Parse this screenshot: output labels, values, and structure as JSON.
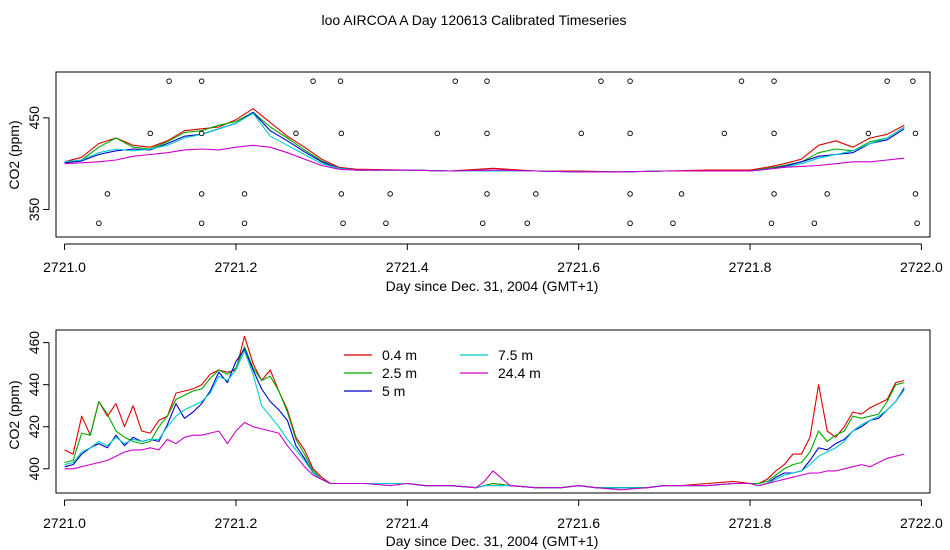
{
  "page_title": "loo AIRCOA A  Day 120613  Calibrated Timeseries",
  "chart_data": [
    {
      "type": "line",
      "panel": "top",
      "title": "",
      "xlabel": "Day since Dec. 31, 2004 (GMT+1)",
      "ylabel": "CO2 (ppm)",
      "xlim": [
        2720.99,
        2722.01
      ],
      "ylim": [
        320,
        500
      ],
      "x_ticks": [
        2721.0,
        2721.2,
        2721.4,
        2721.6,
        2721.8,
        2722.0
      ],
      "x_tick_labels": [
        "2721.0",
        "2721.2",
        "2721.4",
        "2721.6",
        "2721.8",
        "2722.0"
      ],
      "y_ticks": [
        350,
        450
      ],
      "y_tick_labels": [
        "350",
        "450"
      ],
      "x": [
        2721.0,
        2721.02,
        2721.04,
        2721.06,
        2721.08,
        2721.1,
        2721.12,
        2721.14,
        2721.16,
        2721.18,
        2721.2,
        2721.22,
        2721.24,
        2721.26,
        2721.28,
        2721.3,
        2721.32,
        2721.34,
        2721.4,
        2721.45,
        2721.5,
        2721.55,
        2721.6,
        2721.65,
        2721.7,
        2721.75,
        2721.8,
        2721.82,
        2721.84,
        2721.86,
        2721.88,
        2721.9,
        2721.92,
        2721.94,
        2721.96,
        2721.98
      ],
      "series": [
        {
          "name": "0.4 m",
          "color": "#dd0000",
          "values": [
            402,
            407,
            422,
            428,
            420,
            418,
            425,
            436,
            438,
            440,
            448,
            460,
            445,
            430,
            418,
            405,
            396,
            394,
            393,
            392,
            395,
            392,
            392,
            391,
            392,
            393,
            393,
            396,
            400,
            405,
            420,
            425,
            418,
            428,
            432,
            442
          ]
        },
        {
          "name": "2.5 m",
          "color": "#00aa00",
          "values": [
            401,
            404,
            418,
            428,
            418,
            416,
            424,
            434,
            436,
            442,
            446,
            456,
            440,
            428,
            415,
            403,
            395,
            393,
            393,
            392,
            393,
            392,
            391,
            391,
            392,
            392,
            392,
            395,
            398,
            402,
            412,
            416,
            414,
            424,
            428,
            440
          ]
        },
        {
          "name": "5 m",
          "color": "#0000cc",
          "values": [
            401,
            403,
            410,
            414,
            416,
            415,
            422,
            430,
            432,
            438,
            444,
            456,
            436,
            425,
            413,
            402,
            395,
            393,
            393,
            392,
            393,
            392,
            391,
            391,
            392,
            392,
            392,
            394,
            397,
            402,
            408,
            410,
            412,
            422,
            426,
            438
          ]
        },
        {
          "name": "7.5 m",
          "color": "#00cccc",
          "values": [
            402,
            404,
            412,
            416,
            414,
            416,
            420,
            428,
            432,
            438,
            444,
            455,
            430,
            420,
            410,
            400,
            395,
            393,
            393,
            392,
            392,
            392,
            391,
            391,
            392,
            392,
            392,
            394,
            396,
            400,
            406,
            410,
            414,
            422,
            428,
            440
          ]
        },
        {
          "name": "24.4 m",
          "color": "#cc00cc",
          "values": [
            400,
            401,
            402,
            404,
            408,
            410,
            412,
            415,
            416,
            415,
            418,
            420,
            418,
            412,
            405,
            398,
            394,
            393,
            393,
            392,
            393,
            392,
            391,
            391,
            392,
            392,
            392,
            394,
            396,
            397,
            398,
            400,
            402,
            402,
            404,
            406
          ]
        }
      ],
      "markers_x": [
        2721.122,
        2721.16,
        2721.29,
        2721.322,
        2721.456,
        2721.493,
        2721.626,
        2721.66,
        2721.79,
        2721.828,
        2721.96,
        2721.99,
        2721.1,
        2721.16,
        2721.27,
        2721.323,
        2721.435,
        2721.493,
        2721.603,
        2721.66,
        2721.77,
        2721.828,
        2721.938,
        2721.993,
        2721.05,
        2721.16,
        2721.21,
        2721.323,
        2721.38,
        2721.493,
        2721.55,
        2721.66,
        2721.72,
        2721.828,
        2721.89,
        2721.993,
        2721.04,
        2721.16,
        2721.21,
        2721.325,
        2721.375,
        2721.488,
        2721.54,
        2721.66,
        2721.71,
        2721.825,
        2721.875,
        2721.995
      ],
      "markers_y": [
        490,
        490,
        490,
        490,
        490,
        490,
        490,
        490,
        490,
        490,
        490,
        490,
        433,
        433,
        433,
        433,
        433,
        433,
        433,
        433,
        433,
        433,
        433,
        433,
        367,
        367,
        367,
        367,
        367,
        367,
        367,
        367,
        367,
        367,
        367,
        367,
        335,
        335,
        335,
        335,
        335,
        335,
        335,
        335,
        335,
        335,
        335,
        335
      ]
    },
    {
      "type": "line",
      "panel": "bottom",
      "title": "",
      "xlabel": "Day since Dec. 31, 2004 (GMT+1)",
      "ylabel": "CO2 (ppm)",
      "xlim": [
        2720.99,
        2722.01
      ],
      "ylim": [
        388.5,
        466
      ],
      "x_ticks": [
        2721.0,
        2721.2,
        2721.4,
        2721.6,
        2721.8,
        2722.0
      ],
      "x_tick_labels": [
        "2721.0",
        "2721.2",
        "2721.4",
        "2721.6",
        "2721.8",
        "2722.0"
      ],
      "y_ticks": [
        400,
        420,
        440,
        460
      ],
      "y_tick_labels": [
        "400",
        "420",
        "440",
        "460"
      ],
      "x": [
        2721.0,
        2721.01,
        2721.02,
        2721.03,
        2721.04,
        2721.05,
        2721.06,
        2721.07,
        2721.08,
        2721.09,
        2721.1,
        2721.11,
        2721.12,
        2721.13,
        2721.14,
        2721.15,
        2721.16,
        2721.17,
        2721.18,
        2721.19,
        2721.2,
        2721.21,
        2721.22,
        2721.23,
        2721.24,
        2721.25,
        2721.26,
        2721.27,
        2721.28,
        2721.29,
        2721.3,
        2721.31,
        2721.32,
        2721.33,
        2721.35,
        2721.38,
        2721.4,
        2721.42,
        2721.45,
        2721.48,
        2721.49,
        2721.5,
        2721.52,
        2721.55,
        2721.58,
        2721.6,
        2721.62,
        2721.65,
        2721.68,
        2721.7,
        2721.72,
        2721.75,
        2721.78,
        2721.8,
        2721.81,
        2721.82,
        2721.83,
        2721.84,
        2721.85,
        2721.86,
        2721.87,
        2721.88,
        2721.89,
        2721.9,
        2721.91,
        2721.92,
        2721.93,
        2721.94,
        2721.95,
        2721.96,
        2721.97,
        2721.98
      ],
      "series": [
        {
          "name": "0.4 m",
          "color": "#dd0000",
          "values": [
            409,
            407,
            425,
            416,
            432,
            425,
            431,
            420,
            430,
            418,
            417,
            423,
            425,
            436,
            437,
            438,
            440,
            445,
            447,
            446,
            447,
            463,
            450,
            442,
            447,
            437,
            428,
            415,
            409,
            400,
            396,
            393,
            393,
            393,
            393,
            393,
            393,
            392,
            392,
            391,
            392,
            393,
            392,
            391,
            391,
            392,
            391,
            391,
            391,
            392,
            392,
            393,
            394,
            393,
            393,
            395,
            399,
            402,
            407,
            407,
            415,
            440,
            418,
            415,
            420,
            427,
            426,
            429,
            431,
            433,
            441,
            442
          ]
        },
        {
          "name": "2.5 m",
          "color": "#00aa00",
          "values": [
            403,
            404,
            417,
            416,
            432,
            426,
            418,
            415,
            413,
            412,
            413,
            420,
            425,
            433,
            435,
            437,
            438,
            443,
            447,
            445,
            448,
            458,
            448,
            442,
            444,
            437,
            427,
            414,
            407,
            399,
            395,
            393,
            393,
            393,
            393,
            393,
            393,
            392,
            392,
            391,
            392,
            393,
            392,
            391,
            391,
            392,
            391,
            391,
            391,
            392,
            392,
            392,
            393,
            393,
            393,
            394,
            397,
            400,
            402,
            403,
            408,
            418,
            413,
            416,
            418,
            425,
            424,
            425,
            426,
            432,
            440,
            441
          ]
        },
        {
          "name": "5 m",
          "color": "#0000cc",
          "values": [
            401,
            402,
            407,
            410,
            412,
            410,
            416,
            411,
            415,
            413,
            414,
            413,
            421,
            431,
            424,
            427,
            431,
            437,
            446,
            441,
            451,
            457,
            447,
            438,
            432,
            428,
            423,
            411,
            405,
            398,
            395,
            393,
            393,
            393,
            393,
            393,
            393,
            392,
            392,
            391,
            392,
            392,
            392,
            391,
            391,
            392,
            391,
            391,
            391,
            392,
            392,
            392,
            393,
            393,
            392,
            393,
            396,
            398,
            398,
            399,
            404,
            410,
            409,
            412,
            414,
            418,
            420,
            423,
            424,
            428,
            432,
            438
          ]
        },
        {
          "name": "7.5 m",
          "color": "#00cccc",
          "values": [
            402,
            403,
            408,
            410,
            413,
            411,
            415,
            412,
            414,
            413,
            414,
            414,
            420,
            425,
            428,
            430,
            432,
            436,
            444,
            442,
            447,
            456,
            445,
            430,
            425,
            420,
            414,
            409,
            404,
            398,
            395,
            393,
            393,
            393,
            393,
            393,
            393,
            392,
            392,
            391,
            392,
            392,
            392,
            391,
            391,
            392,
            391,
            391,
            391,
            392,
            392,
            392,
            393,
            393,
            392,
            393,
            395,
            397,
            398,
            399,
            402,
            406,
            408,
            410,
            413,
            418,
            421,
            423,
            425,
            428,
            432,
            439
          ]
        },
        {
          "name": "24.4 m",
          "color": "#cc00cc",
          "values": [
            400,
            400,
            401,
            402,
            403,
            404,
            406,
            408,
            409,
            409,
            410,
            409,
            414,
            412,
            415,
            416,
            416,
            417,
            418,
            412,
            418,
            422,
            420,
            419,
            418,
            417,
            411,
            406,
            401,
            397,
            395,
            393,
            393,
            393,
            393,
            392,
            393,
            392,
            392,
            391,
            394,
            399,
            392,
            391,
            391,
            392,
            391,
            390,
            391,
            392,
            392,
            392,
            393,
            393,
            392,
            393,
            394,
            395,
            396,
            397,
            398,
            398,
            399,
            399,
            400,
            401,
            402,
            401,
            403,
            405,
            406,
            407
          ]
        }
      ],
      "legend": {
        "placement": "top-left",
        "entries": [
          {
            "label": "0.4 m",
            "color": "#dd0000"
          },
          {
            "label": "2.5 m",
            "color": "#00aa00"
          },
          {
            "label": "5 m",
            "color": "#0000cc"
          },
          {
            "label": "7.5 m",
            "color": "#00cccc"
          },
          {
            "label": "24.4 m",
            "color": "#cc00cc"
          }
        ]
      }
    }
  ]
}
